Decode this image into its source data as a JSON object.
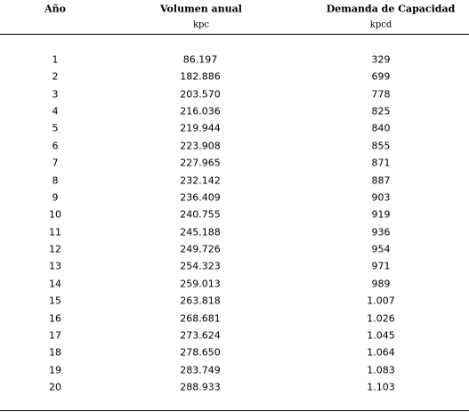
{
  "table": {
    "header": [
      "Año",
      "Volumen anual",
      "Demanda de Capacidad"
    ],
    "units": [
      "kpc",
      "kpcd"
    ],
    "rows": [
      [
        "1",
        "86.197",
        "329"
      ],
      [
        "2",
        "182.886",
        "699"
      ],
      [
        "3",
        "203.570",
        "778"
      ],
      [
        "4",
        "216.036",
        "825"
      ],
      [
        "5",
        "219.944",
        "840"
      ],
      [
        "6",
        "223.908",
        "855"
      ],
      [
        "7",
        "227.965",
        "871"
      ],
      [
        "8",
        "232.142",
        "887"
      ],
      [
        "9",
        "236.409",
        "903"
      ],
      [
        "10",
        "240.755",
        "919"
      ],
      [
        "11",
        "245.188",
        "936"
      ],
      [
        "12",
        "249.726",
        "954"
      ],
      [
        "13",
        "254.323",
        "971"
      ],
      [
        "14",
        "259.013",
        "989"
      ],
      [
        "15",
        "263.818",
        "1.007"
      ],
      [
        "16",
        "268.681",
        "1.026"
      ],
      [
        "17",
        "273.624",
        "1.045"
      ],
      [
        "18",
        "278.650",
        "1.064"
      ],
      [
        "19",
        "283.749",
        "1.083"
      ],
      [
        "20",
        "288.933",
        "1.103"
      ]
    ]
  }
}
